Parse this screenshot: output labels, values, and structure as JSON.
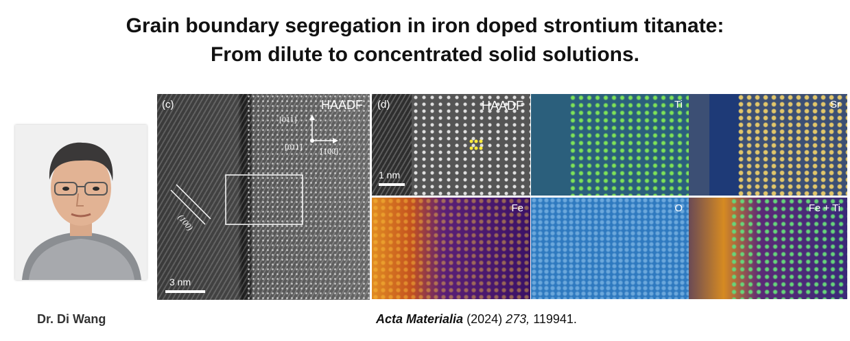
{
  "title": {
    "line1": "Grain boundary segregation in iron doped strontium titanate:",
    "line2": "From dilute to concentrated solid solutions."
  },
  "author": "Dr. Di Wang",
  "citation": {
    "journal": "Acta Materialia",
    "year": "(2024)",
    "volume": "273,",
    "article": "119941."
  },
  "panel_c": {
    "label": "(c)",
    "mode": "HAADF",
    "scale_bar": "3 nm",
    "direction_up": "[011]",
    "direction_out": "[011]",
    "direction_right": "[100]",
    "plane": "(100)"
  },
  "panel_d": {
    "label": "(d)",
    "scale_bar": "1 nm",
    "maps": [
      {
        "name": "HAADF"
      },
      {
        "name": "Ti"
      },
      {
        "name": "Sr"
      },
      {
        "name": "Fe"
      },
      {
        "name": "O"
      },
      {
        "name": "Fe + Ti"
      }
    ]
  }
}
